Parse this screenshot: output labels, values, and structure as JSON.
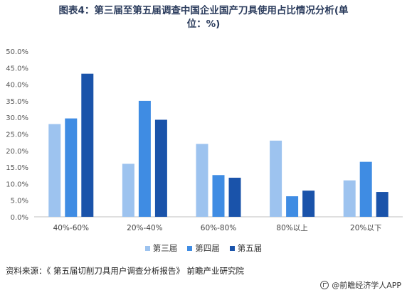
{
  "title": {
    "line1": "图表4：第三届至第五届调查中国企业国产刀具使用占比情况分析(单",
    "line2": "位：%)"
  },
  "source": "资料来源：《 第五届切削刀具用户调查分析报告》 前瞻产业研究院",
  "brand": "@前瞻经济学人APP",
  "colors": {
    "series1": "#9dc3ef",
    "series2": "#3f8ce3",
    "series3": "#1a53aa",
    "axis": "#bfbfbf",
    "grid": "#e6e6e6"
  },
  "chart_data": {
    "type": "bar",
    "categories": [
      "40%-60%",
      "20%-40%",
      "60%-80%",
      "80%以上",
      "20%以下"
    ],
    "series": [
      {
        "name": "第三届",
        "values": [
          28.0,
          16.0,
          22.0,
          23.0,
          11.0
        ]
      },
      {
        "name": "第四届",
        "values": [
          29.7,
          35.0,
          12.6,
          6.2,
          16.6
        ]
      },
      {
        "name": "第五届",
        "values": [
          43.2,
          29.3,
          11.8,
          7.9,
          7.5
        ]
      }
    ],
    "yticks": [
      "0.0%",
      "5.0%",
      "10.0%",
      "15.0%",
      "20.0%",
      "25.0%",
      "30.0%",
      "35.0%",
      "40.0%",
      "45.0%",
      "50.0%"
    ],
    "ylim": [
      0,
      50
    ],
    "grid": false,
    "legend_position": "bottom"
  }
}
